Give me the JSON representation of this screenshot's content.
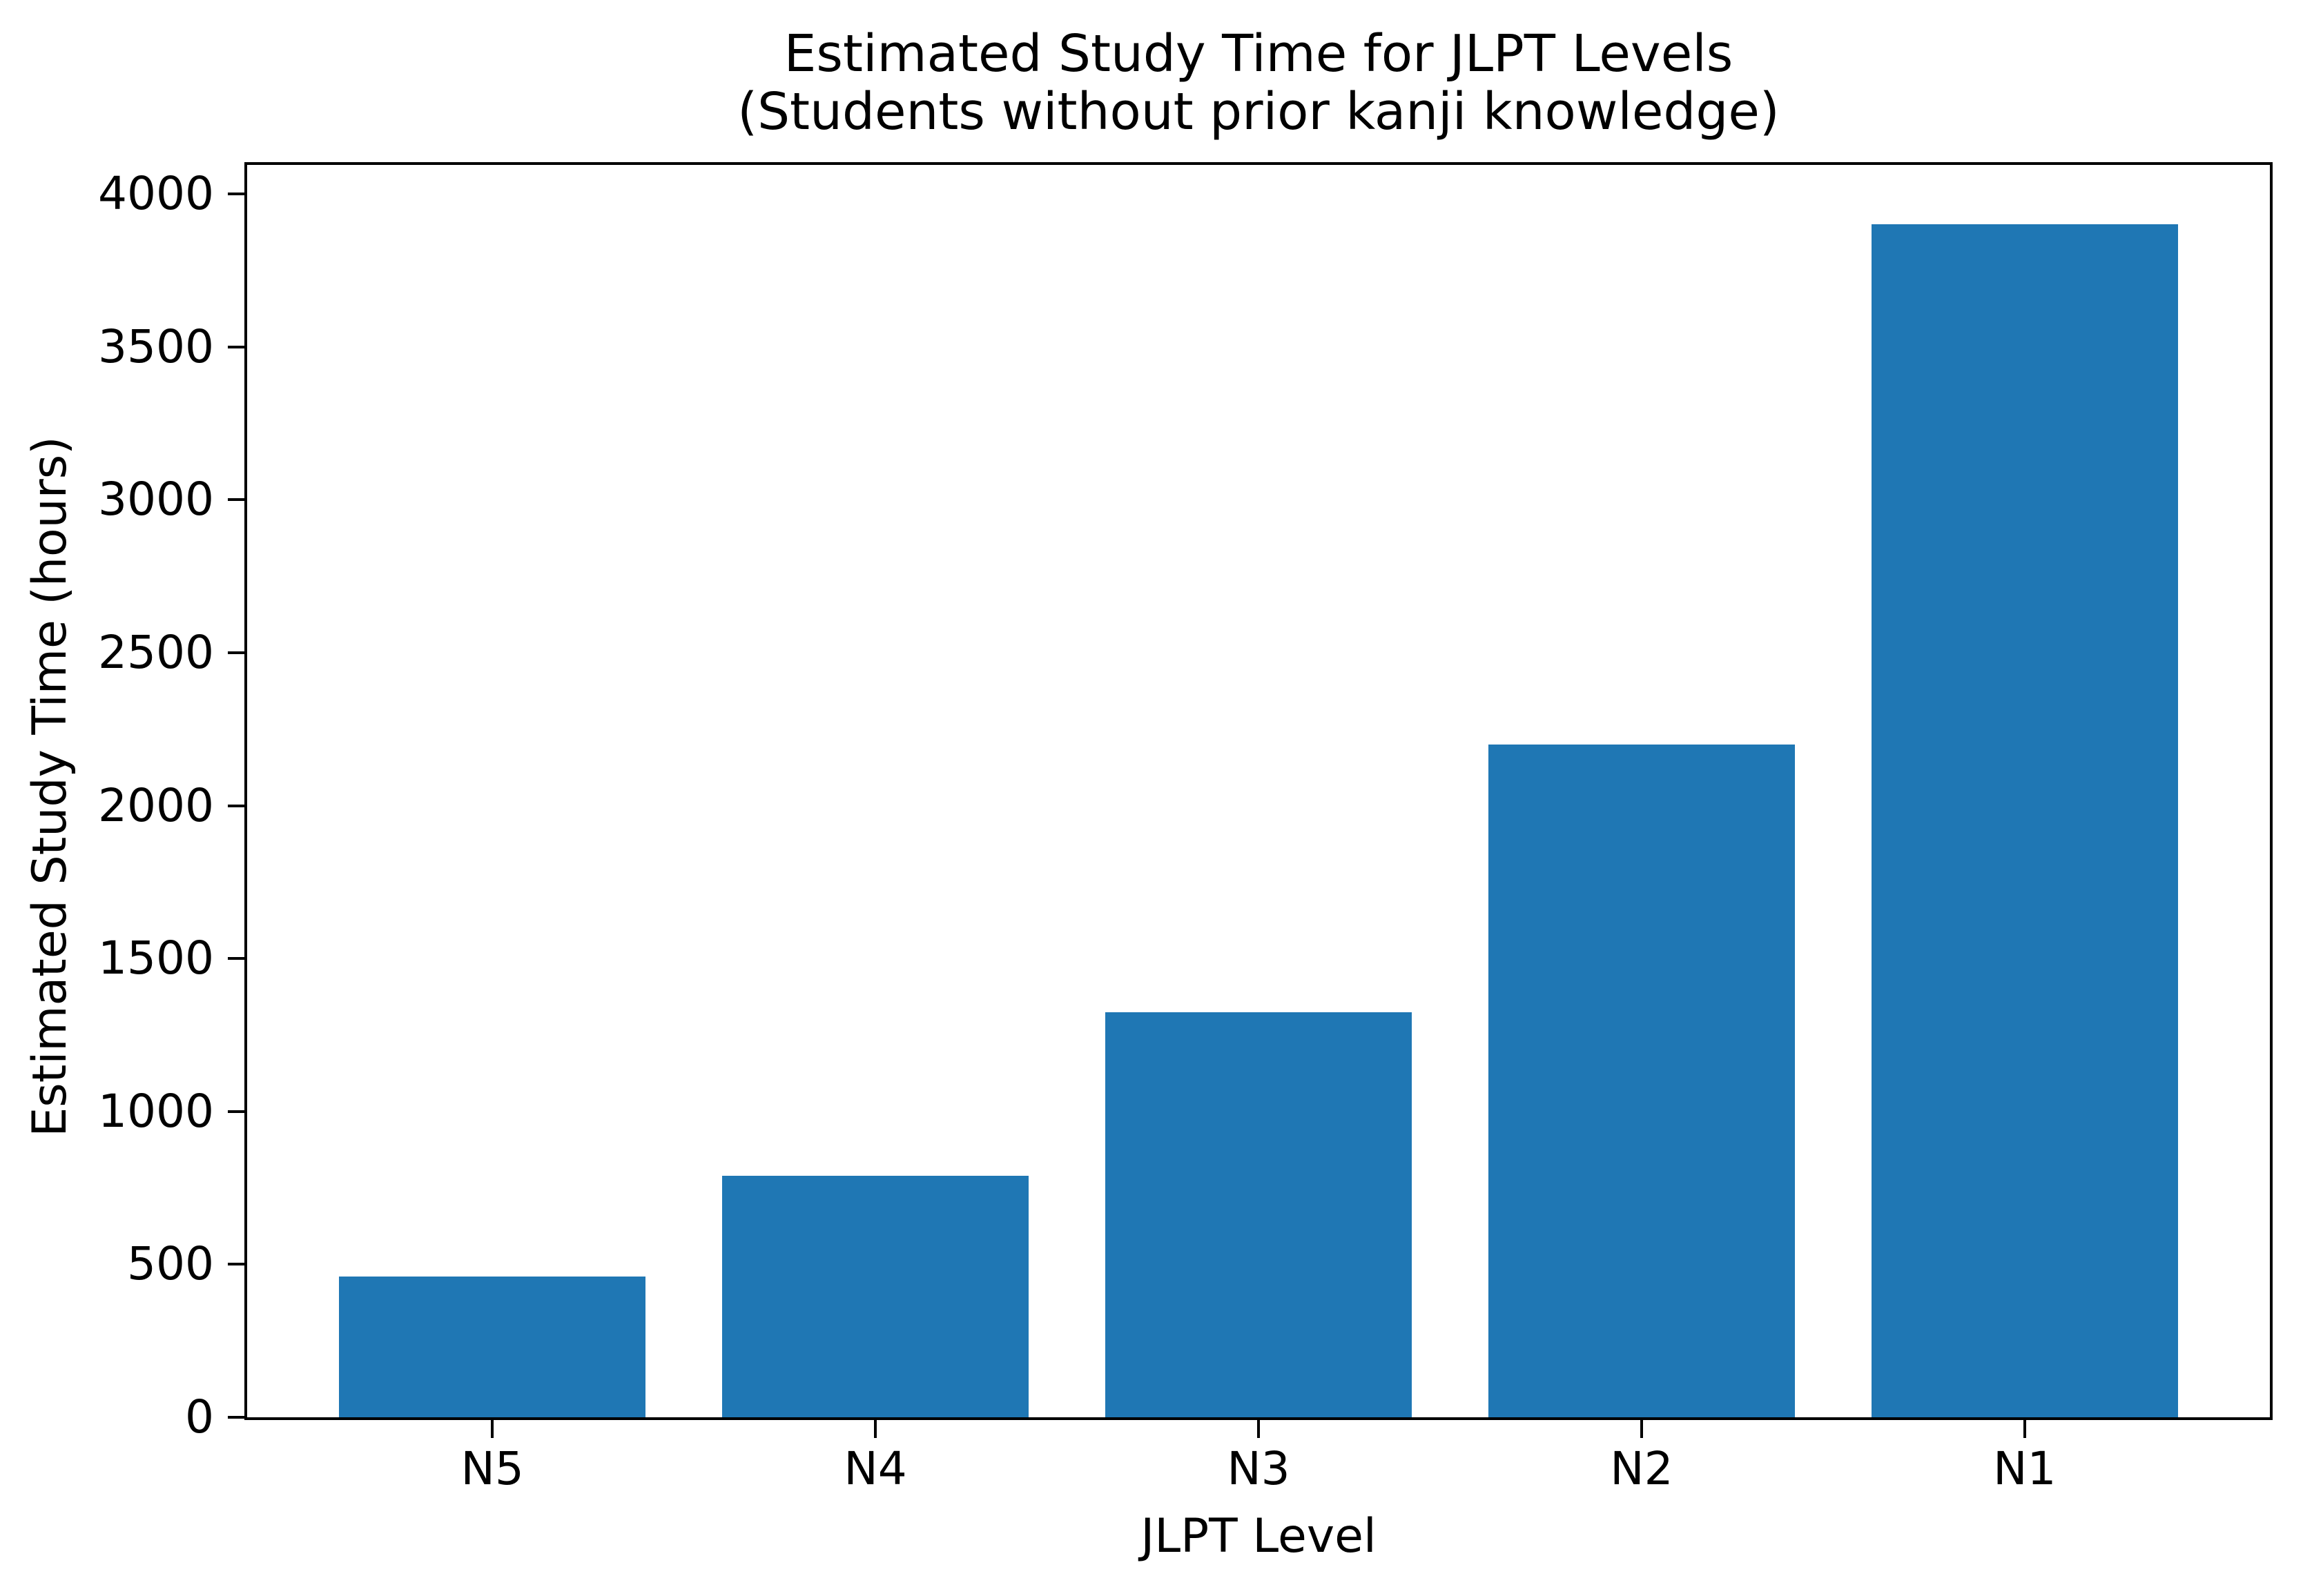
{
  "chart_data": {
    "type": "bar",
    "title": "Estimated Study Time for JLPT Levels",
    "subtitle": "(Students without prior kanji knowledge)",
    "xlabel": "JLPT Level",
    "ylabel": "Estimated Study Time (hours)",
    "categories": [
      "N5",
      "N4",
      "N3",
      "N2",
      "N1"
    ],
    "values": [
      460,
      790,
      1325,
      2200,
      3900
    ],
    "yticks": [
      0,
      500,
      1000,
      1500,
      2000,
      2500,
      3000,
      3500,
      4000
    ],
    "ylim": [
      0,
      4095
    ],
    "bar_color": "#1f77b4",
    "bar_width_ratio": 0.8,
    "x_margin": 0.05,
    "grid": false,
    "legend": false
  }
}
